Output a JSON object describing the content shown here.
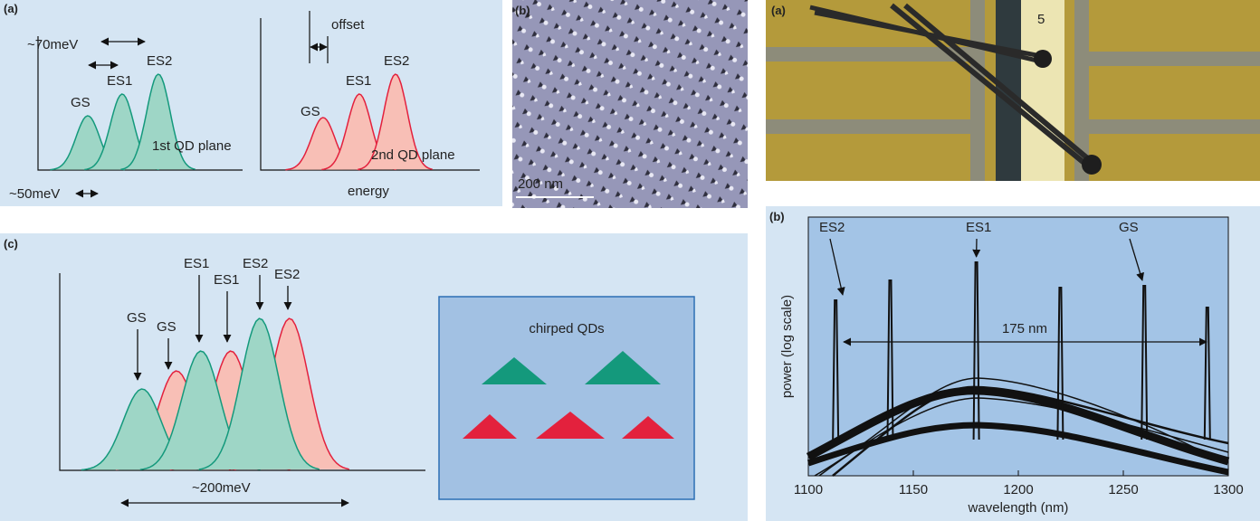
{
  "panel_a_left": {
    "label": "(a)",
    "plot1": {
      "spacing": "~70meV",
      "es2": "ES2",
      "es1": "ES1",
      "gs": "GS",
      "plane": "1st QD plane",
      "width": "~50meV"
    },
    "plot2": {
      "offset": "offset",
      "gs": "GS",
      "es1": "ES1",
      "es2": "ES2",
      "plane": "2nd QD plane",
      "xlabel": "energy"
    }
  },
  "panel_b_afm": {
    "label": "(b)",
    "scale_bar": "200 nm"
  },
  "panel_a_photo": {
    "label": "(a)",
    "marker": "5"
  },
  "panel_c": {
    "label": "(c)",
    "peaks": [
      "GS",
      "GS",
      "ES1",
      "ES1",
      "ES2",
      "ES2"
    ],
    "span": "~200meV",
    "inset_title": "chirped QDs"
  },
  "panel_b_spectrum": {
    "label": "(b)",
    "annotations": [
      "ES2",
      "ES1",
      "GS"
    ],
    "span": "175 nm",
    "ylabel": "power (log scale)",
    "xlabel": "wavelength (nm)",
    "xlim": [
      1100,
      1300
    ],
    "xticks": [
      1100,
      1150,
      1200,
      1250,
      1300
    ]
  }
}
